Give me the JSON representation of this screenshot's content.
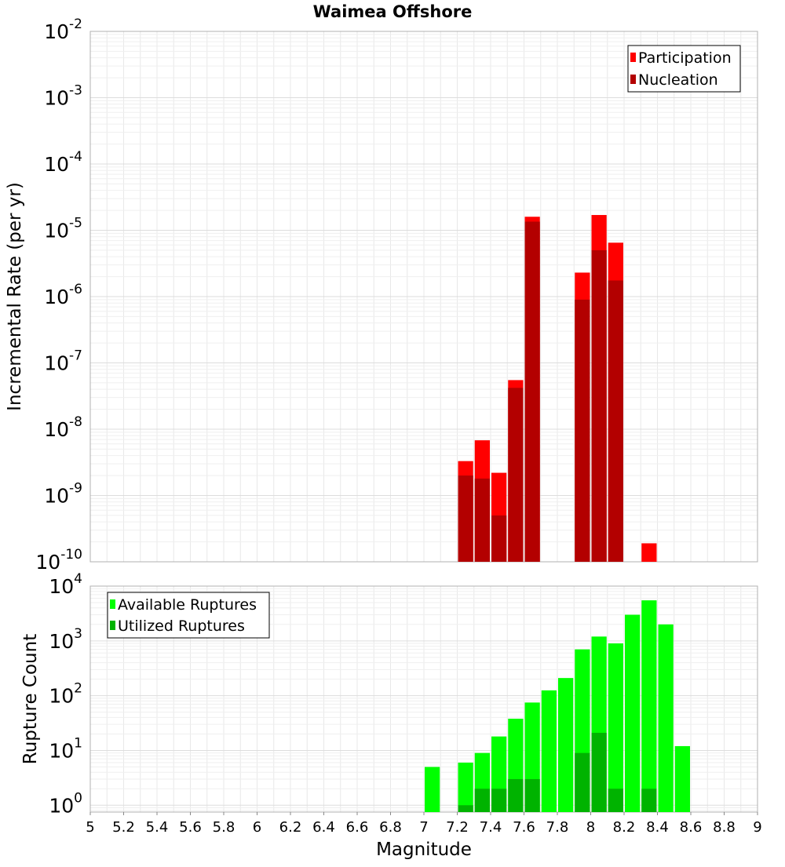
{
  "chart_data": [
    {
      "type": "bar",
      "title": "Waimea Offshore",
      "xlabel": "",
      "ylabel": "Incremental Rate (per yr)",
      "y_scale": "log",
      "ylim": [
        1e-10,
        0.01
      ],
      "xlim": [
        5,
        9
      ],
      "bar_width": 0.1,
      "grid": true,
      "legend_position": "top-right",
      "y_ticks": [
        {
          "base": "10",
          "exp": "-10",
          "value": 1e-10
        },
        {
          "base": "10",
          "exp": "-9",
          "value": 1e-09
        },
        {
          "base": "10",
          "exp": "-8",
          "value": 1e-08
        },
        {
          "base": "10",
          "exp": "-7",
          "value": 1e-07
        },
        {
          "base": "10",
          "exp": "-6",
          "value": 1e-06
        },
        {
          "base": "10",
          "exp": "-5",
          "value": 1e-05
        },
        {
          "base": "10",
          "exp": "-4",
          "value": 0.0001
        },
        {
          "base": "10",
          "exp": "-3",
          "value": 0.001
        },
        {
          "base": "10",
          "exp": "-2",
          "value": 0.01
        }
      ],
      "series": [
        {
          "name": "Participation",
          "color": "#ff0000",
          "x": [
            7.25,
            7.35,
            7.45,
            7.55,
            7.65,
            7.95,
            8.05,
            8.15,
            8.35
          ],
          "values": [
            3.3e-09,
            6.8e-09,
            2.2e-09,
            5.5e-08,
            1.6e-05,
            2.3e-06,
            1.7e-05,
            6.5e-06,
            1.9e-10
          ]
        },
        {
          "name": "Nucleation",
          "color": "#b30000",
          "x": [
            7.25,
            7.35,
            7.45,
            7.55,
            7.65,
            7.95,
            8.05,
            8.15
          ],
          "values": [
            2e-09,
            1.8e-09,
            5e-10,
            4.2e-08,
            1.35e-05,
            9e-07,
            5e-06,
            1.75e-06
          ]
        }
      ]
    },
    {
      "type": "bar",
      "title": "",
      "xlabel": "Magnitude",
      "ylabel": "Rupture Count",
      "y_scale": "log",
      "ylim": [
        0.75,
        10000
      ],
      "xlim": [
        5,
        9
      ],
      "bar_width": 0.1,
      "grid": true,
      "legend_position": "top-left",
      "x_ticks": [
        "5",
        "5.2",
        "5.4",
        "5.6",
        "5.8",
        "6",
        "6.2",
        "6.4",
        "6.6",
        "6.8",
        "7",
        "7.2",
        "7.4",
        "7.6",
        "7.8",
        "8",
        "8.2",
        "8.4",
        "8.6",
        "8.8",
        "9"
      ],
      "y_ticks": [
        {
          "base": "10",
          "exp": "0",
          "value": 1
        },
        {
          "base": "10",
          "exp": "1",
          "value": 10
        },
        {
          "base": "10",
          "exp": "2",
          "value": 100
        },
        {
          "base": "10",
          "exp": "3",
          "value": 1000
        },
        {
          "base": "10",
          "exp": "4",
          "value": 10000
        }
      ],
      "series": [
        {
          "name": "Available Ruptures",
          "color": "#00ff00",
          "x": [
            7.05,
            7.25,
            7.35,
            7.45,
            7.55,
            7.65,
            7.75,
            7.85,
            7.95,
            8.05,
            8.15,
            8.25,
            8.35,
            8.45,
            8.55
          ],
          "values": [
            5,
            6,
            9,
            18,
            38,
            75,
            125,
            210,
            700,
            1200,
            900,
            3000,
            5500,
            2000,
            12
          ]
        },
        {
          "name": "Utilized Ruptures",
          "color": "#00b300",
          "x": [
            7.25,
            7.35,
            7.45,
            7.55,
            7.65,
            7.95,
            8.05,
            8.15,
            8.35
          ],
          "values": [
            1,
            2,
            2,
            3,
            3,
            9,
            21,
            2,
            2
          ]
        }
      ]
    }
  ]
}
